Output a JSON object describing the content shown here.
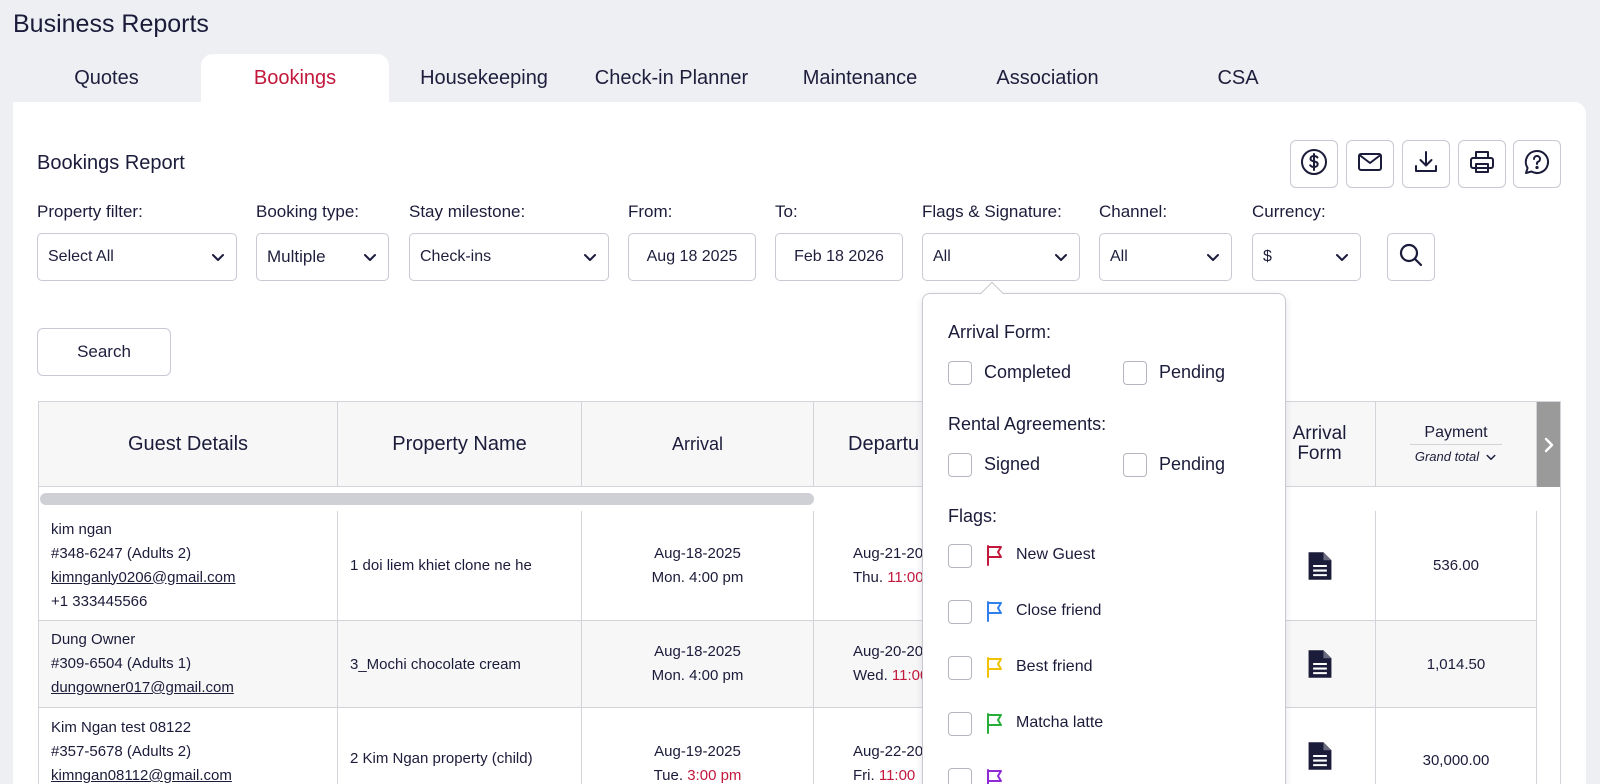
{
  "app": {
    "title": "Business Reports"
  },
  "tabs": [
    {
      "label": "Quotes"
    },
    {
      "label": "Bookings"
    },
    {
      "label": "Housekeeping"
    },
    {
      "label": "Check-in Planner"
    },
    {
      "label": "Maintenance"
    },
    {
      "label": "Association"
    },
    {
      "label": "CSA"
    }
  ],
  "report": {
    "title": "Bookings Report"
  },
  "toolbar_icons": [
    "dollar-circle-icon",
    "mail-icon",
    "download-icon",
    "print-icon",
    "help-chat-icon"
  ],
  "filters": {
    "property": {
      "label": "Property filter:",
      "value": "Select All"
    },
    "booking_type": {
      "label": "Booking type:",
      "value": "Multiple"
    },
    "stay_milestone": {
      "label": "Stay milestone:",
      "value": "Check-ins"
    },
    "from": {
      "label": "From:",
      "value": "Aug 18 2025"
    },
    "to": {
      "label": "To:",
      "value": "Feb 18 2026"
    },
    "flags_signature": {
      "label": "Flags & Signature:",
      "value": "All"
    },
    "channel": {
      "label": "Channel:",
      "value": "All"
    },
    "currency": {
      "label": "Currency:",
      "value": "$"
    }
  },
  "search_label": "Search",
  "table": {
    "headers": {
      "guest": "Guest Details",
      "property": "Property Name",
      "arrival": "Arrival",
      "departure": "Departu",
      "arrival_form_1": "Arrival",
      "arrival_form_2": "Form",
      "payment": "Payment",
      "payment_sub": "Grand total"
    },
    "rows": [
      {
        "name": "kim ngan",
        "ref": "#348-6247 (Adults 2)",
        "email": "kimnganly0206@gmail.com",
        "phone": "+1 333445566",
        "property": "1 doi liem khiet clone ne he",
        "arr_date": "Aug-18-2025",
        "arr_day": "Mon.",
        "arr_time": "4:00 pm",
        "dep_date": "Aug-21-20",
        "dep_day": "Thu.",
        "dep_time": "11:00",
        "payment": "536.00"
      },
      {
        "name": "Dung Owner",
        "ref": "#309-6504 (Adults 1)",
        "email": "dungowner017@gmail.com",
        "phone": "",
        "property": "3_Mochi chocolate cream",
        "arr_date": "Aug-18-2025",
        "arr_day": "Mon.",
        "arr_time": "4:00 pm",
        "dep_date": "Aug-20-20",
        "dep_day": "Wed.",
        "dep_time": "11:00",
        "payment": "1,014.50"
      },
      {
        "name": "Kim Ngan test 08122",
        "ref": "#357-5678 (Adults 2)",
        "email": "kimngan08112@gmail.com",
        "phone": "",
        "property": "2 Kim Ngan property (child)",
        "arr_date": "Aug-19-2025",
        "arr_day": "Tue.",
        "arr_time": "3:00 pm",
        "dep_date": "Aug-22-20",
        "dep_day": "Fri.",
        "dep_time": "11:00",
        "payment": "30,000.00"
      }
    ]
  },
  "dropdown": {
    "arrival_form": {
      "label": "Arrival Form:",
      "options": [
        "Completed",
        "Pending"
      ]
    },
    "rental_agreements": {
      "label": "Rental Agreements:",
      "options": [
        "Signed",
        "Pending"
      ]
    },
    "flags": {
      "label": "Flags:",
      "items": [
        {
          "name": "New Guest",
          "color": "#c2183c"
        },
        {
          "name": "Close friend",
          "color": "#2f80ed"
        },
        {
          "name": "Best friend",
          "color": "#f2c200"
        },
        {
          "name": "Matcha latte",
          "color": "#27ae3a"
        },
        {
          "name": "",
          "color": "#8e2bd6"
        }
      ]
    }
  },
  "colors": {
    "accent": "#c2183c"
  }
}
